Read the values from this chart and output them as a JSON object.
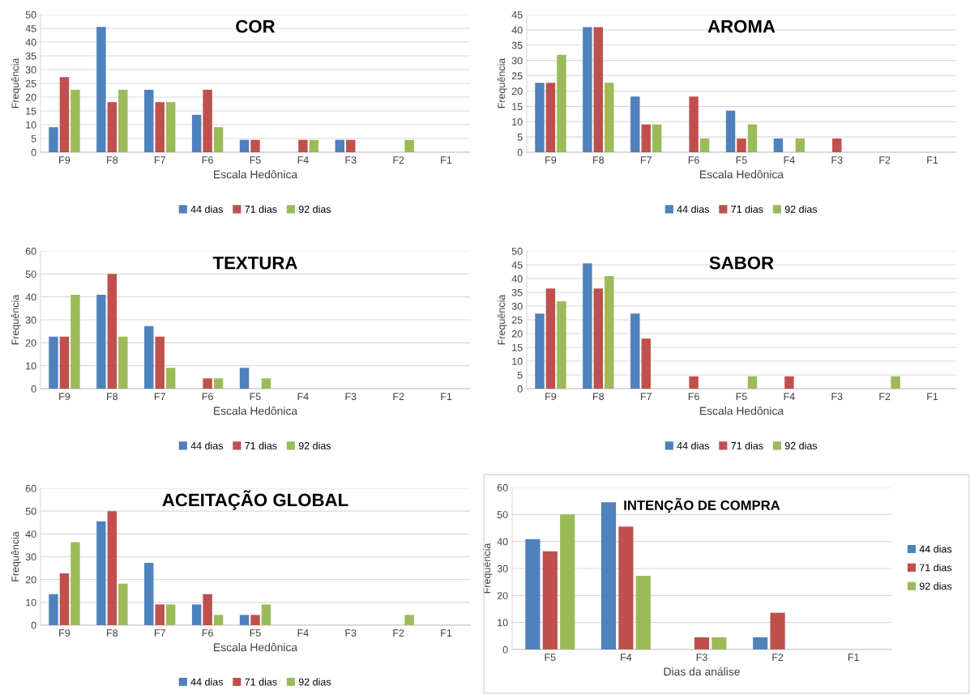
{
  "chart_data": [
    {
      "type": "bar",
      "title": "COR",
      "xlabel": "Escala Hedônica",
      "ylabel": "Frequência",
      "categories": [
        "F9",
        "F8",
        "F7",
        "F6",
        "F5",
        "F4",
        "F3",
        "F2",
        "F1"
      ],
      "ylim": [
        0,
        50
      ],
      "yticks": [
        0,
        5,
        10,
        15,
        20,
        25,
        30,
        35,
        40,
        45,
        50
      ],
      "grid": "y",
      "legend": "bottom",
      "series": [
        {
          "name": "44 dias",
          "color": "#4f81bd",
          "values": [
            9.1,
            45.5,
            22.7,
            13.6,
            4.5,
            0,
            4.5,
            0,
            0
          ]
        },
        {
          "name": "71 dias",
          "color": "#c0504d",
          "values": [
            27.3,
            18.2,
            18.2,
            22.7,
            4.5,
            4.5,
            4.5,
            0,
            0
          ]
        },
        {
          "name": "92 dias",
          "color": "#9bbb59",
          "values": [
            22.7,
            22.7,
            18.2,
            9.1,
            0,
            4.5,
            0,
            4.5,
            0
          ]
        }
      ]
    },
    {
      "type": "bar",
      "title": "AROMA",
      "xlabel": "Escala Hedônica",
      "ylabel": "Frequência",
      "categories": [
        "F9",
        "F8",
        "F7",
        "F6",
        "F5",
        "F4",
        "F3",
        "F2",
        "F1"
      ],
      "ylim": [
        0,
        45
      ],
      "yticks": [
        0,
        5,
        10,
        15,
        20,
        25,
        30,
        35,
        40,
        45
      ],
      "grid": "y",
      "legend": "bottom",
      "series": [
        {
          "name": "44 dias",
          "color": "#4f81bd",
          "values": [
            22.7,
            40.9,
            18.2,
            0,
            13.6,
            4.5,
            0,
            0,
            0
          ]
        },
        {
          "name": "71 dias",
          "color": "#c0504d",
          "values": [
            22.7,
            40.9,
            9.1,
            18.2,
            4.5,
            0,
            4.5,
            0,
            0
          ]
        },
        {
          "name": "92 dias",
          "color": "#9bbb59",
          "values": [
            31.8,
            22.7,
            9.1,
            4.5,
            9.1,
            4.5,
            0,
            0,
            0
          ]
        }
      ]
    },
    {
      "type": "bar",
      "title": "TEXTURA",
      "xlabel": "Escala Hedônica",
      "ylabel": "Frequência",
      "categories": [
        "F9",
        "F8",
        "F7",
        "F6",
        "F5",
        "F4",
        "F3",
        "F2",
        "F1"
      ],
      "ylim": [
        0,
        60
      ],
      "yticks": [
        0,
        10,
        20,
        30,
        40,
        50,
        60
      ],
      "grid": "y",
      "legend": "bottom",
      "series": [
        {
          "name": "44 dias",
          "color": "#4f81bd",
          "values": [
            22.7,
            40.9,
            27.3,
            0,
            9.1,
            0,
            0,
            0,
            0
          ]
        },
        {
          "name": "71 dias",
          "color": "#c0504d",
          "values": [
            22.7,
            50,
            22.7,
            4.5,
            0,
            0,
            0,
            0,
            0
          ]
        },
        {
          "name": "92 dias",
          "color": "#9bbb59",
          "values": [
            40.9,
            22.7,
            9.1,
            4.5,
            4.5,
            0,
            0,
            0,
            0
          ]
        }
      ]
    },
    {
      "type": "bar",
      "title": "SABOR",
      "xlabel": "Escala Hedônica",
      "ylabel": "Frequência",
      "categories": [
        "F9",
        "F8",
        "F7",
        "F6",
        "F5",
        "F4",
        "F3",
        "F2",
        "F1"
      ],
      "ylim": [
        0,
        50
      ],
      "yticks": [
        0,
        5,
        10,
        15,
        20,
        25,
        30,
        35,
        40,
        45,
        50
      ],
      "grid": "y",
      "legend": "bottom",
      "series": [
        {
          "name": "44 dias",
          "color": "#4f81bd",
          "values": [
            27.3,
            45.5,
            27.3,
            0,
            0,
            0,
            0,
            0,
            0
          ]
        },
        {
          "name": "71 dias",
          "color": "#c0504d",
          "values": [
            36.4,
            36.4,
            18.2,
            4.5,
            0,
            4.5,
            0,
            0,
            0
          ]
        },
        {
          "name": "92 dias",
          "color": "#9bbb59",
          "values": [
            31.8,
            40.9,
            0,
            0,
            4.5,
            0,
            0,
            4.5,
            0
          ]
        }
      ]
    },
    {
      "type": "bar",
      "title": "ACEITAÇÃO GLOBAL",
      "xlabel": "Escala Hedônica",
      "ylabel": "Frequência",
      "categories": [
        "F9",
        "F8",
        "F7",
        "F6",
        "F5",
        "F4",
        "F3",
        "F2",
        "F1"
      ],
      "ylim": [
        0,
        60
      ],
      "yticks": [
        0,
        10,
        20,
        30,
        40,
        50,
        60
      ],
      "grid": "y",
      "legend": "bottom",
      "series": [
        {
          "name": "44 dias",
          "color": "#4f81bd",
          "values": [
            13.6,
            45.5,
            27.3,
            9.1,
            4.5,
            0,
            0,
            0,
            0
          ]
        },
        {
          "name": "71 dias",
          "color": "#c0504d",
          "values": [
            22.7,
            50,
            9.1,
            13.6,
            4.5,
            0,
            0,
            0,
            0
          ]
        },
        {
          "name": "92 dias",
          "color": "#9bbb59",
          "values": [
            36.4,
            18.2,
            9.1,
            4.5,
            9.1,
            0,
            0,
            4.5,
            0
          ]
        }
      ]
    },
    {
      "type": "bar",
      "title": "INTENÇÃO DE COMPRA",
      "xlabel": "Dias da análise",
      "ylabel": "Frequência",
      "categories": [
        "F5",
        "F4",
        "F3",
        "F2",
        "F1"
      ],
      "ylim": [
        0,
        60
      ],
      "yticks": [
        0,
        10,
        20,
        30,
        40,
        50,
        60
      ],
      "grid": "y",
      "legend": "right",
      "series": [
        {
          "name": "44 dias",
          "color": "#4f81bd",
          "values": [
            40.9,
            54.5,
            0,
            4.5,
            0
          ]
        },
        {
          "name": "71 dias",
          "color": "#c0504d",
          "values": [
            36.4,
            45.5,
            4.5,
            13.6,
            0
          ]
        },
        {
          "name": "92 dias",
          "color": "#9bbb59",
          "values": [
            50,
            27.3,
            4.5,
            0,
            0
          ]
        }
      ]
    }
  ]
}
